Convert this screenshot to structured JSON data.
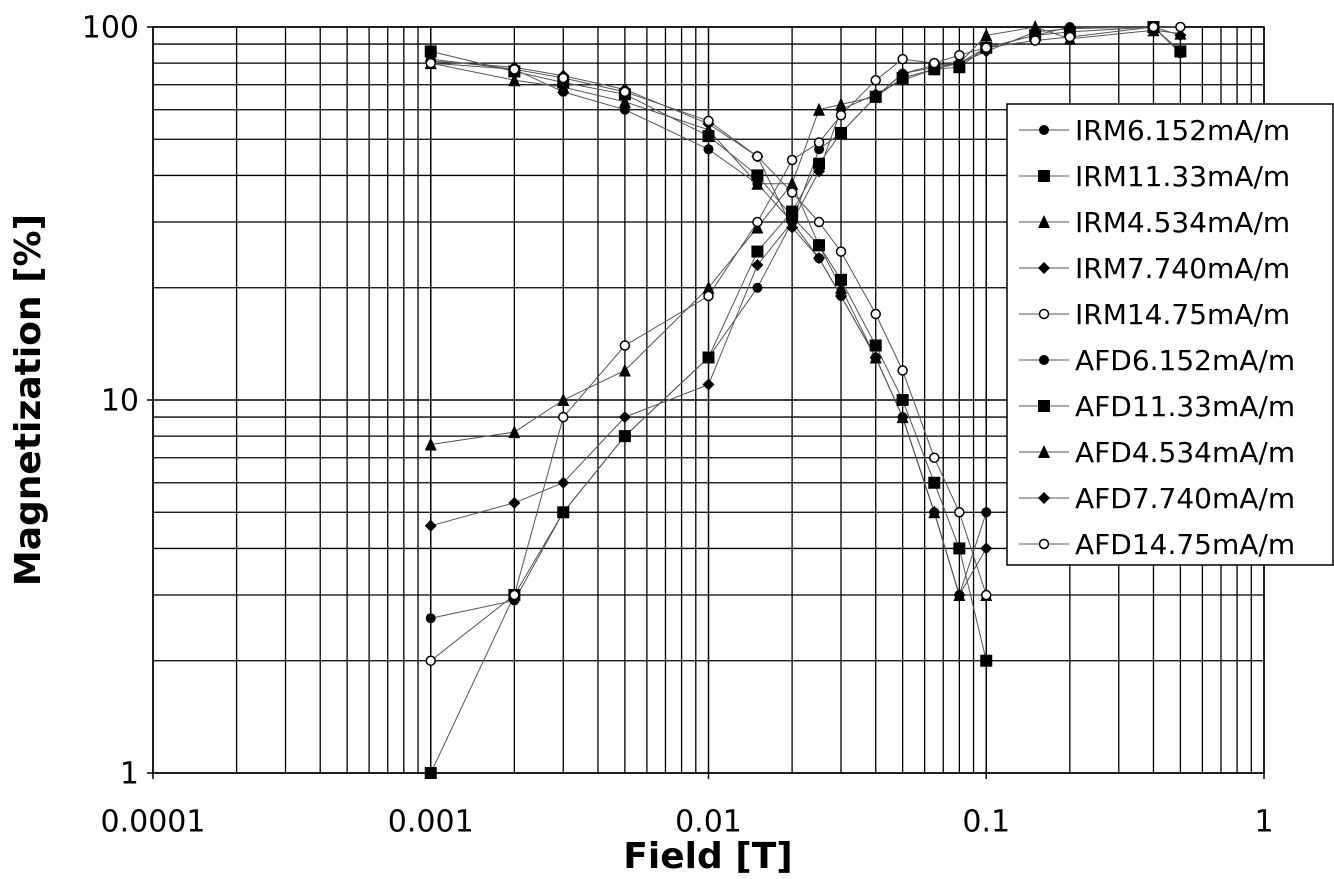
{
  "chart_data": {
    "type": "line",
    "x_label": "Field [T]",
    "y_label": "Magnetization [%]",
    "log_x": true,
    "log_y": true,
    "grid": true,
    "xlim": [
      0.0001,
      1
    ],
    "ylim": [
      1,
      100
    ],
    "xticks": [
      0.0001,
      0.001,
      0.01,
      0.1,
      1
    ],
    "yticks": [
      1,
      10,
      100
    ],
    "xminorticks": [
      0.0002,
      0.0003,
      0.0004,
      0.0005,
      0.0006,
      0.0007,
      0.0008,
      0.0009,
      0.002,
      0.003,
      0.004,
      0.005,
      0.006,
      0.007,
      0.008,
      0.009,
      0.02,
      0.03,
      0.04,
      0.05,
      0.06,
      0.07,
      0.08,
      0.09,
      0.2,
      0.3,
      0.4,
      0.5,
      0.6,
      0.7,
      0.8,
      0.9
    ],
    "yminorticks": [
      2,
      3,
      4,
      5,
      6,
      7,
      8,
      9,
      20,
      30,
      40,
      50,
      60,
      70,
      80,
      90
    ],
    "legend_position": "right",
    "x": [
      0.001,
      0.002,
      0.003,
      0.005,
      0.01,
      0.015,
      0.02,
      0.025,
      0.03,
      0.04,
      0.05,
      0.065,
      0.08,
      0.1,
      0.15,
      0.2,
      0.4,
      0.5
    ],
    "series": [
      {
        "name": "IRM6.152mA/m",
        "color": "#000000",
        "marker": "circle",
        "values": [
          2.6,
          2.9,
          5,
          8,
          13,
          20,
          30,
          47,
          52,
          65,
          75,
          78,
          80,
          88,
          95,
          100,
          100,
          85
        ]
      },
      {
        "name": "IRM11.33mA/m",
        "color": "#000000",
        "marker": "square",
        "values": [
          1,
          3,
          5,
          8,
          13,
          25,
          32,
          43,
          52,
          65,
          73,
          77,
          78,
          88,
          95,
          97,
          100,
          86
        ]
      },
      {
        "name": "IRM4.534mA/m",
        "color": "#000000",
        "marker": "triangle",
        "values": [
          7.6,
          8.2,
          10,
          12,
          20,
          29,
          38,
          60,
          62,
          65,
          75,
          79,
          80,
          95,
          100,
          93,
          98,
          96
        ]
      },
      {
        "name": "IRM7.740mA/m",
        "color": "#000000",
        "marker": "diamond",
        "values": [
          4.6,
          5.3,
          6,
          9,
          11,
          23,
          30,
          41,
          60,
          66,
          72,
          77,
          80,
          86,
          97,
          99,
          100,
          95
        ]
      },
      {
        "name": "IRM14.75mA/m",
        "color": "#000000",
        "marker": "open-circle",
        "values": [
          2,
          3,
          9,
          14,
          19,
          30,
          44,
          49,
          58,
          72,
          82,
          80,
          84,
          88,
          92,
          94,
          100,
          100
        ]
      },
      {
        "name": "AFD6.152mA/m",
        "color": "#000000",
        "marker": "circle",
        "values": [
          82,
          77,
          67,
          60,
          47,
          38,
          30,
          24,
          19,
          13,
          9,
          5,
          3,
          5,
          null,
          null,
          null,
          null
        ]
      },
      {
        "name": "AFD11.33mA/m",
        "color": "#000000",
        "marker": "square",
        "values": [
          86,
          76,
          71,
          66,
          51,
          40,
          31,
          26,
          21,
          14,
          10,
          6,
          4,
          2,
          null,
          null,
          null,
          null
        ]
      },
      {
        "name": "AFD4.534mA/m",
        "color": "#000000",
        "marker": "triangle",
        "values": [
          80,
          72,
          69,
          63,
          53,
          38,
          38,
          26,
          20,
          13,
          9,
          5,
          3,
          3,
          null,
          null,
          null,
          null
        ]
      },
      {
        "name": "AFD7.740mA/m",
        "color": "#000000",
        "marker": "diamond",
        "values": [
          81,
          78,
          74,
          68,
          55,
          45,
          29,
          24,
          19,
          13,
          9,
          5,
          3,
          4,
          null,
          null,
          null,
          null
        ]
      },
      {
        "name": "AFD14.75mA/m",
        "color": "#000000",
        "marker": "open-circle",
        "values": [
          80,
          77,
          73,
          67,
          56,
          45,
          36,
          30,
          25,
          17,
          12,
          7,
          5,
          3,
          null,
          null,
          null,
          null
        ]
      }
    ]
  }
}
